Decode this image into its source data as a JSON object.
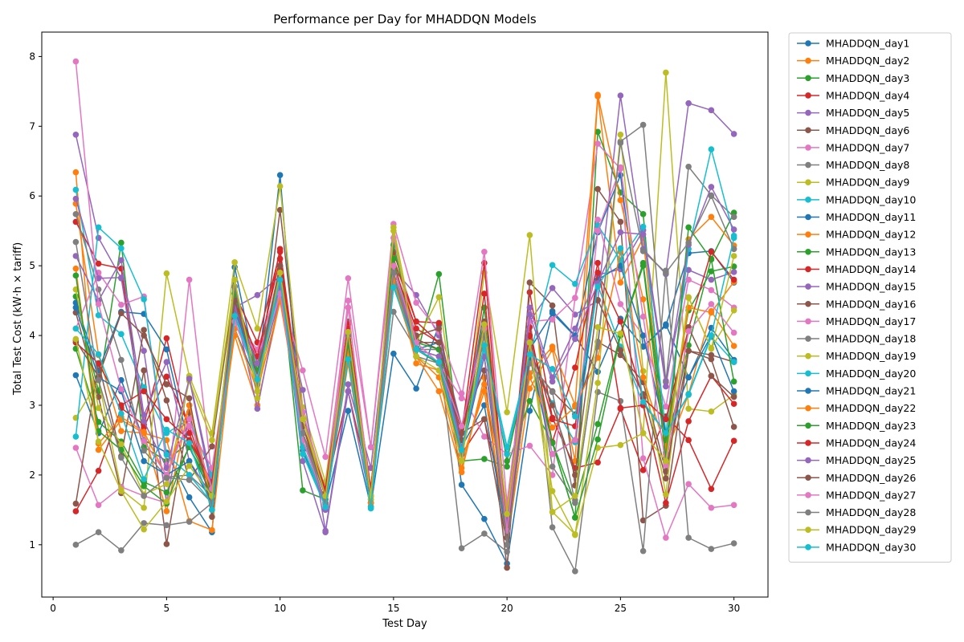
{
  "chart_data": {
    "type": "line",
    "title": "Performance per Day for MHADDQN Models",
    "xlabel": "Test Day",
    "ylabel": "Total Test Cost (kW·h × tariff)",
    "xlim": [
      -0.5,
      31.5
    ],
    "ylim": [
      0.25,
      8.35
    ],
    "xticks": [
      0,
      5,
      10,
      15,
      20,
      25,
      30
    ],
    "yticks": [
      1,
      2,
      3,
      4,
      5,
      6,
      7,
      8
    ],
    "grid": false,
    "legend_position": "outside-right",
    "x": [
      1,
      2,
      3,
      4,
      5,
      6,
      7,
      8,
      9,
      10,
      11,
      12,
      13,
      14,
      15,
      16,
      17,
      18,
      19,
      20,
      21,
      22,
      23,
      24,
      25,
      26,
      27,
      28,
      29,
      30
    ],
    "series": [
      {
        "name": "MHADDQN_day1",
        "color": "#1f77b4",
        "values": [
          3.43,
          2.6,
          3.36,
          2.5,
          2.32,
          1.68,
          1.18,
          4.98,
          3.4,
          6.3,
          2.35,
          1.57,
          2.92,
          1.55,
          3.74,
          3.24,
          4.15,
          1.86,
          1.37,
          0.73,
          2.92,
          4.35,
          4.0,
          3.48,
          4.24,
          3.84,
          4.16,
          3.4,
          4.11,
          3.65
        ]
      },
      {
        "name": "MHADDQN_day2",
        "color": "#ff7f0e",
        "values": [
          6.34,
          2.36,
          2.79,
          2.6,
          2.5,
          1.34,
          1.21,
          4.2,
          3.4,
          4.6,
          2.4,
          1.55,
          3.6,
          1.55,
          4.72,
          3.7,
          3.2,
          2.04,
          3.4,
          1.0,
          3.24,
          3.8,
          2.2,
          7.43,
          4.76,
          5.4,
          2.3,
          3.16,
          4.35,
          3.85
        ]
      },
      {
        "name": "MHADDQN_day3",
        "color": "#2ca02c",
        "values": [
          4.56,
          3.2,
          5.33,
          2.4,
          2.2,
          2.48,
          1.8,
          4.7,
          3.3,
          4.95,
          1.78,
          1.65,
          4.0,
          1.65,
          4.9,
          3.7,
          4.88,
          2.2,
          2.23,
          2.12,
          3.06,
          2.46,
          1.39,
          6.92,
          6.05,
          5.74,
          2.33,
          3.86,
          5.1,
          5.76
        ]
      },
      {
        "name": "MHADDQN_day4",
        "color": "#d62728",
        "values": [
          1.48,
          2.06,
          2.96,
          2.72,
          3.96,
          2.6,
          1.75,
          4.6,
          3.6,
          5.24,
          2.8,
          1.75,
          3.2,
          1.8,
          5.2,
          4.2,
          4.18,
          2.3,
          2.8,
          1.4,
          4.62,
          2.82,
          2.1,
          2.18,
          2.95,
          2.07,
          2.84,
          2.5,
          1.8,
          2.49
        ]
      },
      {
        "name": "MHADDQN_day5",
        "color": "#9467bd",
        "values": [
          6.88,
          5.4,
          4.82,
          3.78,
          1.6,
          3.4,
          1.9,
          4.4,
          4.58,
          4.85,
          2.2,
          1.18,
          3.2,
          1.6,
          4.95,
          4.58,
          4.0,
          2.7,
          4.2,
          1.4,
          4.2,
          4.68,
          4.3,
          4.5,
          7.44,
          5.24,
          4.88,
          7.33,
          7.23,
          6.89
        ]
      },
      {
        "name": "MHADDQN_day6",
        "color": "#8c564b",
        "values": [
          4.33,
          3.12,
          1.74,
          3.5,
          1.01,
          2.9,
          1.5,
          4.5,
          3.2,
          5.8,
          2.9,
          1.7,
          4.2,
          1.6,
          4.8,
          3.95,
          3.8,
          2.7,
          3.5,
          0.67,
          4.76,
          4.43,
          1.85,
          6.1,
          5.63,
          1.35,
          1.56,
          3.78,
          3.72,
          3.62
        ]
      },
      {
        "name": "MHADDQN_day7",
        "color": "#e377c2",
        "values": [
          2.39,
          1.57,
          1.83,
          1.7,
          1.6,
          4.8,
          1.95,
          4.3,
          3.7,
          4.6,
          3.5,
          2.26,
          4.82,
          2.4,
          5.6,
          4.47,
          4.05,
          3.17,
          2.55,
          2.3,
          2.42,
          2.0,
          4.54,
          6.75,
          6.39,
          2.24,
          1.1,
          1.87,
          1.53,
          1.57
        ]
      },
      {
        "name": "MHADDQN_day8",
        "color": "#7f7f7f",
        "values": [
          1.0,
          1.18,
          0.92,
          1.31,
          1.28,
          1.33,
          1.6,
          4.3,
          3.5,
          5.0,
          2.4,
          1.6,
          3.8,
          1.7,
          4.34,
          3.8,
          3.8,
          0.95,
          1.16,
          0.9,
          4.3,
          1.25,
          0.62,
          3.19,
          3.06,
          0.91,
          4.93,
          1.1,
          0.94,
          1.02
        ]
      },
      {
        "name": "MHADDQN_day9",
        "color": "#bcbd22",
        "values": [
          2.82,
          3.36,
          1.79,
          1.53,
          4.89,
          3.42,
          2.6,
          5.05,
          4.1,
          6.14,
          2.97,
          1.9,
          4.4,
          1.65,
          5.55,
          3.9,
          4.55,
          2.2,
          4.9,
          2.9,
          5.44,
          1.47,
          1.15,
          2.39,
          2.43,
          2.6,
          7.77,
          2.95,
          2.91,
          3.15
        ]
      },
      {
        "name": "MHADDQN_day10",
        "color": "#17becf",
        "values": [
          6.09,
          4.29,
          4.02,
          3.26,
          2.6,
          2.8,
          2.0,
          4.3,
          3.4,
          4.7,
          2.4,
          1.54,
          3.66,
          1.52,
          4.72,
          3.82,
          3.6,
          2.3,
          3.86,
          2.4,
          3.63,
          3.03,
          2.47,
          4.72,
          3.84,
          3.02,
          2.6,
          3.15,
          3.98,
          3.62
        ]
      },
      {
        "name": "MHADDQN_day11",
        "color": "#1f77b4",
        "values": [
          4.47,
          3.5,
          4.34,
          4.31,
          3.8,
          2.4,
          1.7,
          4.1,
          3.3,
          4.6,
          2.6,
          1.6,
          4.0,
          1.7,
          4.8,
          3.8,
          3.9,
          2.4,
          3.0,
          1.1,
          3.8,
          4.32,
          3.99,
          5.48,
          6.3,
          3.84,
          4.14,
          5.18,
          5.21,
          4.76
        ]
      },
      {
        "name": "MHADDQN_day12",
        "color": "#ff7f0e",
        "values": [
          5.89,
          3.72,
          2.63,
          2.6,
          1.48,
          3.0,
          1.7,
          4.0,
          3.0,
          4.5,
          2.7,
          1.7,
          3.8,
          1.7,
          4.9,
          3.6,
          3.5,
          2.2,
          3.2,
          1.2,
          3.46,
          3.84,
          3.0,
          7.45,
          5.94,
          4.52,
          2.39,
          5.38,
          5.7,
          5.29
        ]
      },
      {
        "name": "MHADDQN_day13",
        "color": "#2ca02c",
        "values": [
          3.81,
          2.76,
          2.48,
          1.9,
          1.75,
          2.4,
          1.8,
          4.6,
          3.5,
          4.9,
          2.5,
          1.6,
          3.9,
          1.6,
          5.3,
          3.9,
          3.8,
          2.3,
          4.0,
          2.2,
          3.7,
          2.47,
          1.6,
          2.73,
          4.02,
          5.04,
          2.5,
          4.36,
          4.92,
          4.99
        ]
      },
      {
        "name": "MHADDQN_day14",
        "color": "#d62728",
        "values": [
          5.63,
          5.03,
          4.96,
          2.68,
          3.41,
          2.7,
          1.7,
          4.6,
          3.9,
          5.2,
          2.8,
          1.8,
          4.16,
          1.8,
          5.1,
          4.2,
          3.9,
          2.6,
          5.04,
          1.2,
          4.12,
          2.47,
          3.54,
          5.04,
          2.96,
          3.0,
          1.6,
          2.77,
          3.42,
          3.02
        ]
      },
      {
        "name": "MHADDQN_day15",
        "color": "#9467bd",
        "values": [
          5.14,
          4.5,
          5.08,
          2.86,
          3.62,
          2.2,
          1.7,
          4.4,
          2.95,
          4.6,
          3.22,
          1.2,
          3.3,
          2.1,
          5.0,
          3.8,
          3.6,
          2.5,
          4.4,
          1.3,
          4.4,
          3.4,
          4.1,
          4.87,
          4.95,
          5.51,
          3.35,
          4.94,
          4.8,
          4.91
        ]
      },
      {
        "name": "MHADDQN_day16",
        "color": "#8c564b",
        "values": [
          1.59,
          3.6,
          2.27,
          4.08,
          3.07,
          1.93,
          2.41,
          4.7,
          3.2,
          5.0,
          2.6,
          1.8,
          4.0,
          1.7,
          5.0,
          4.0,
          4.1,
          2.6,
          2.8,
          1.0,
          3.6,
          3.2,
          2.87,
          3.91,
          3.72,
          3.33,
          2.05,
          3.78,
          3.66,
          2.69
        ]
      },
      {
        "name": "MHADDQN_day17",
        "color": "#e377c2",
        "values": [
          4.1,
          4.9,
          4.44,
          4.56,
          2.14,
          2.7,
          2.1,
          4.2,
          3.8,
          4.8,
          2.9,
          1.8,
          4.5,
          2.4,
          5.4,
          3.9,
          3.6,
          3.1,
          5.2,
          1.6,
          4.2,
          4.23,
          4.54,
          5.66,
          4.45,
          4.0,
          2.98,
          4.8,
          4.65,
          4.4
        ]
      },
      {
        "name": "MHADDQN_day18",
        "color": "#7f7f7f",
        "values": [
          5.74,
          4.66,
          3.65,
          2.35,
          1.97,
          2.0,
          1.7,
          4.6,
          3.3,
          4.9,
          2.6,
          1.7,
          4.0,
          1.7,
          4.9,
          3.8,
          3.7,
          2.3,
          4.1,
          1.1,
          4.0,
          2.12,
          1.64,
          3.84,
          6.78,
          7.02,
          3.33,
          6.42,
          6.01,
          5.7
        ]
      },
      {
        "name": "MHADDQN_day19",
        "color": "#bcbd22",
        "values": [
          4.66,
          2.96,
          2.44,
          1.72,
          1.87,
          3.35,
          2.5,
          4.8,
          3.1,
          5.0,
          2.8,
          1.8,
          4.1,
          1.7,
          5.1,
          3.8,
          3.6,
          2.3,
          4.1,
          1.48,
          3.9,
          1.77,
          1.14,
          3.32,
          6.88,
          3.49,
          1.72,
          4.54,
          3.82,
          4.36
        ]
      },
      {
        "name": "MHADDQN_day20",
        "color": "#17becf",
        "values": [
          2.55,
          5.55,
          5.25,
          4.52,
          2.29,
          2.0,
          1.6,
          4.3,
          3.4,
          5.0,
          2.4,
          1.6,
          3.7,
          1.6,
          4.7,
          3.8,
          3.6,
          2.3,
          3.8,
          2.3,
          3.7,
          5.01,
          4.74,
          5.58,
          5.08,
          5.56,
          2.6,
          5.24,
          6.67,
          5.43
        ]
      },
      {
        "name": "MHADDQN_day21",
        "color": "#1f77b4",
        "values": [
          4.4,
          3.4,
          3.2,
          2.2,
          2.0,
          2.2,
          1.6,
          4.4,
          3.4,
          4.8,
          2.5,
          1.6,
          3.9,
          1.6,
          4.8,
          3.8,
          3.6,
          2.3,
          3.7,
          1.1,
          3.7,
          2.3,
          2.5,
          4.8,
          5.0,
          4.0,
          2.6,
          3.4,
          4.0,
          3.2
        ]
      },
      {
        "name": "MHADDQN_day22",
        "color": "#ff7f0e",
        "values": [
          4.96,
          2.45,
          2.83,
          2.62,
          1.98,
          3.0,
          1.6,
          4.1,
          3.2,
          4.5,
          2.6,
          1.6,
          3.7,
          1.6,
          4.8,
          3.7,
          3.4,
          2.1,
          3.3,
          1.5,
          3.4,
          2.68,
          2.98,
          3.68,
          5.2,
          3.4,
          2.38,
          4.4,
          4.33,
          4.77
        ]
      },
      {
        "name": "MHADDQN_day23",
        "color": "#2ca02c",
        "values": [
          4.86,
          2.63,
          2.36,
          1.84,
          1.59,
          2.42,
          1.7,
          4.6,
          3.5,
          4.8,
          2.5,
          1.6,
          3.9,
          1.7,
          5.1,
          3.8,
          3.6,
          2.2,
          4.4,
          1.4,
          3.9,
          2.46,
          1.39,
          2.51,
          4.0,
          5.0,
          2.24,
          5.55,
          5.09,
          3.34
        ]
      },
      {
        "name": "MHADDQN_day24",
        "color": "#d62728",
        "values": [
          3.9,
          3.6,
          3.0,
          3.2,
          2.8,
          2.5,
          1.9,
          4.5,
          3.7,
          5.1,
          2.7,
          1.8,
          4.1,
          1.8,
          5.0,
          4.1,
          3.9,
          2.5,
          4.6,
          1.3,
          4.0,
          2.8,
          2.7,
          4.9,
          4.2,
          3.1,
          2.8,
          4.1,
          5.2,
          4.8
        ]
      },
      {
        "name": "MHADDQN_day25",
        "color": "#9467bd",
        "values": [
          5.96,
          4.82,
          4.83,
          2.77,
          2.1,
          3.38,
          1.8,
          4.4,
          3.6,
          4.7,
          2.6,
          1.5,
          4.0,
          1.7,
          5.0,
          3.8,
          3.7,
          2.4,
          3.7,
          1.3,
          4.3,
          3.34,
          3.95,
          4.75,
          5.48,
          5.45,
          3.27,
          5.3,
          6.13,
          5.52
        ]
      },
      {
        "name": "MHADDQN_day26",
        "color": "#8c564b",
        "values": [
          3.93,
          3.41,
          4.32,
          4.0,
          3.3,
          3.1,
          1.4,
          4.5,
          3.4,
          5.0,
          2.7,
          1.7,
          4.0,
          1.7,
          5.0,
          3.9,
          3.9,
          2.5,
          4.2,
          1.1,
          3.8,
          3.0,
          2.0,
          4.51,
          3.79,
          3.16,
          1.95,
          4.12,
          3.42,
          3.12
        ]
      },
      {
        "name": "MHADDQN_day27",
        "color": "#e377c2",
        "values": [
          7.93,
          4.45,
          3.23,
          2.49,
          2.0,
          2.8,
          1.8,
          4.2,
          3.4,
          4.6,
          2.5,
          1.6,
          4.4,
          1.7,
          5.0,
          3.9,
          3.6,
          2.7,
          4.1,
          1.2,
          3.9,
          2.3,
          2.5,
          5.5,
          6.41,
          4.27,
          2.14,
          4.06,
          4.45,
          4.04
        ]
      },
      {
        "name": "MHADDQN_day28",
        "color": "#7f7f7f",
        "values": [
          5.34,
          3.36,
          2.25,
          1.7,
          1.96,
          1.93,
          1.6,
          4.7,
          3.3,
          4.9,
          2.6,
          1.6,
          4.0,
          1.7,
          4.9,
          3.7,
          3.6,
          2.3,
          4.0,
          1.0,
          3.6,
          3.19,
          1.6,
          3.9,
          6.76,
          5.21,
          4.9,
          5.33,
          6.0,
          5.24
        ]
      },
      {
        "name": "MHADDQN_day29",
        "color": "#bcbd22",
        "values": [
          3.95,
          2.48,
          1.77,
          1.22,
          1.62,
          2.13,
          1.7,
          4.8,
          3.2,
          4.9,
          2.8,
          1.7,
          4.05,
          1.7,
          5.5,
          3.7,
          3.5,
          2.2,
          4.16,
          1.44,
          3.9,
          1.47,
          1.7,
          4.12,
          4.03,
          2.6,
          2.2,
          4.55,
          3.81,
          5.14
        ]
      },
      {
        "name": "MHADDQN_day30",
        "color": "#17becf",
        "values": [
          4.1,
          3.73,
          2.88,
          1.94,
          2.65,
          2.46,
          1.5,
          4.28,
          3.37,
          4.8,
          2.3,
          1.54,
          3.66,
          1.54,
          4.69,
          3.8,
          3.62,
          2.36,
          3.86,
          2.4,
          3.73,
          3.52,
          2.84,
          4.7,
          5.25,
          3.05,
          2.6,
          3.16,
          4.0,
          5.4
        ]
      }
    ]
  }
}
